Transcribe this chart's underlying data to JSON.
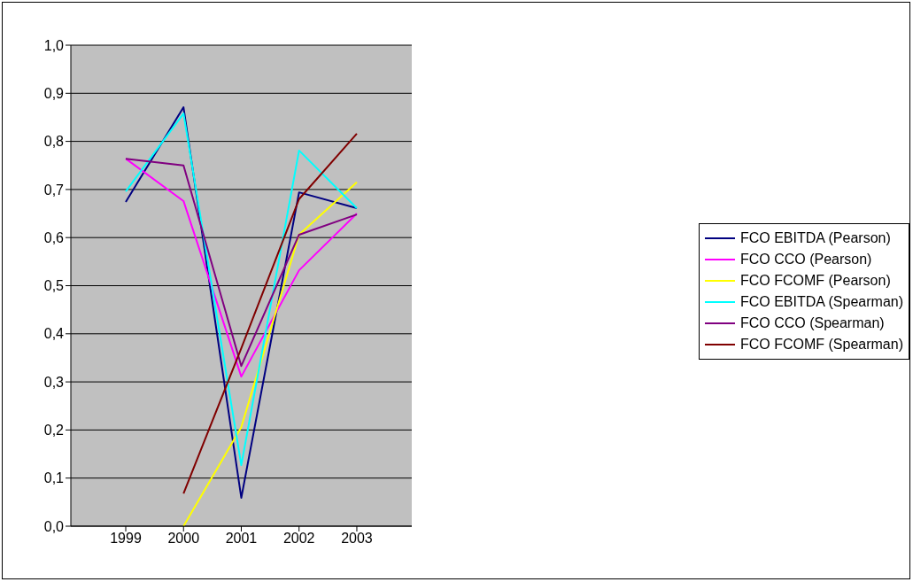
{
  "chart_data": {
    "type": "line",
    "categories": [
      "1999",
      "2000",
      "2001",
      "2002",
      "2003"
    ],
    "series": [
      {
        "name": "FCO EBITDA (Pearson)",
        "color": "#000080",
        "values": [
          0.674,
          0.871,
          0.059,
          0.694,
          0.661
        ]
      },
      {
        "name": "FCO CCO (Pearson)",
        "color": "#ff00ff",
        "values": [
          0.764,
          0.676,
          0.311,
          0.532,
          0.65
        ]
      },
      {
        "name": "FCO FCOMF (Pearson)",
        "color": "#ffff00",
        "values": [
          null,
          0.0,
          0.206,
          0.606,
          0.715
        ]
      },
      {
        "name": "FCO EBITDA (Spearman)",
        "color": "#00ffff",
        "values": [
          0.696,
          0.858,
          0.127,
          0.781,
          0.661
        ]
      },
      {
        "name": "FCO CCO (Spearman)",
        "color": "#800080",
        "values": [
          0.764,
          0.75,
          0.333,
          0.606,
          0.648
        ]
      },
      {
        "name": "FCO FCOMF (Spearman)",
        "color": "#800000",
        "values": [
          null,
          0.068,
          0.37,
          0.68,
          0.816
        ]
      }
    ],
    "ylim": [
      0,
      1
    ],
    "yticks": [
      {
        "value": 0,
        "label": "0,0"
      },
      {
        "value": 0.1,
        "label": "0,1"
      },
      {
        "value": 0.2,
        "label": "0,2"
      },
      {
        "value": 0.3,
        "label": "0,3"
      },
      {
        "value": 0.4,
        "label": "0,4"
      },
      {
        "value": 0.5,
        "label": "0,5"
      },
      {
        "value": 0.6,
        "label": "0,6"
      },
      {
        "value": 0.7,
        "label": "0,7"
      },
      {
        "value": 0.8,
        "label": "0,8"
      },
      {
        "value": 0.9,
        "label": "0,9"
      },
      {
        "value": 1,
        "label": "1,0"
      }
    ],
    "grid": "y",
    "legend": "right",
    "marker": "none",
    "line_style": "solid"
  }
}
